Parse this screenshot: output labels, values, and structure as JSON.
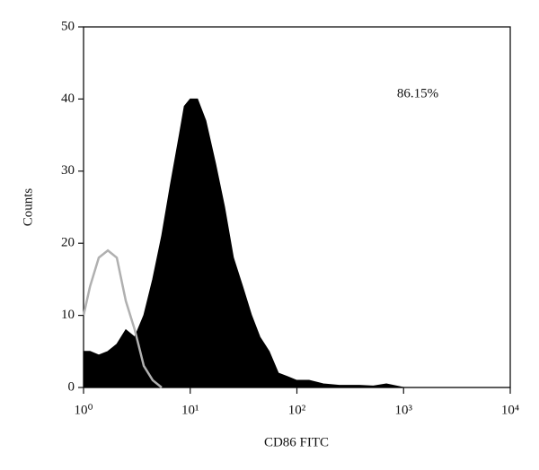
{
  "chart_data": {
    "type": "histogram",
    "xlabel": "CD86 FITC",
    "ylabel": "Counts",
    "annotation": "86.15%",
    "xscale": "log",
    "x": [
      1,
      1.15,
      1.39,
      1.69,
      2.05,
      2.49,
      3.02,
      3.67,
      4.45,
      5.4,
      6.5,
      7.9,
      8.8,
      10,
      11.7,
      14,
      17.3,
      21,
      25.4,
      31,
      37.6,
      45,
      55,
      67,
      82,
      99,
      130,
      177,
      250,
      385,
      520,
      690,
      1000,
      2000,
      5000,
      10000
    ],
    "series": [
      {
        "style": "filled",
        "color": "#000000",
        "values": [
          5,
          5,
          4.5,
          5,
          6,
          8,
          7,
          10,
          15,
          21,
          28,
          35,
          39,
          40,
          40,
          37,
          31,
          25,
          18,
          14,
          10,
          7,
          5,
          2,
          1.5,
          1,
          1,
          0.5,
          0.3,
          0.3,
          0.2,
          0.5,
          0,
          0,
          0,
          0
        ]
      },
      {
        "style": "outline",
        "color": "#b0b0b0",
        "values": [
          10,
          14,
          18,
          19,
          18,
          12,
          8,
          3,
          1,
          0,
          null,
          null,
          null,
          null,
          null,
          null,
          null,
          null,
          null,
          null,
          null,
          null,
          null,
          null,
          null,
          null,
          null,
          null,
          null,
          null,
          null,
          null,
          null,
          null,
          null,
          null
        ]
      }
    ],
    "xlim": [
      1,
      10000
    ],
    "xticks": [
      {
        "value": 1,
        "label": "10⁰"
      },
      {
        "value": 10,
        "label": "10¹"
      },
      {
        "value": 100,
        "label": "10²"
      },
      {
        "value": 1000,
        "label": "10³"
      },
      {
        "value": 10000,
        "label": "10⁴"
      }
    ],
    "ylim": [
      0,
      50
    ],
    "yticks": [
      0,
      10,
      20,
      30,
      40,
      50
    ],
    "grid": false
  }
}
